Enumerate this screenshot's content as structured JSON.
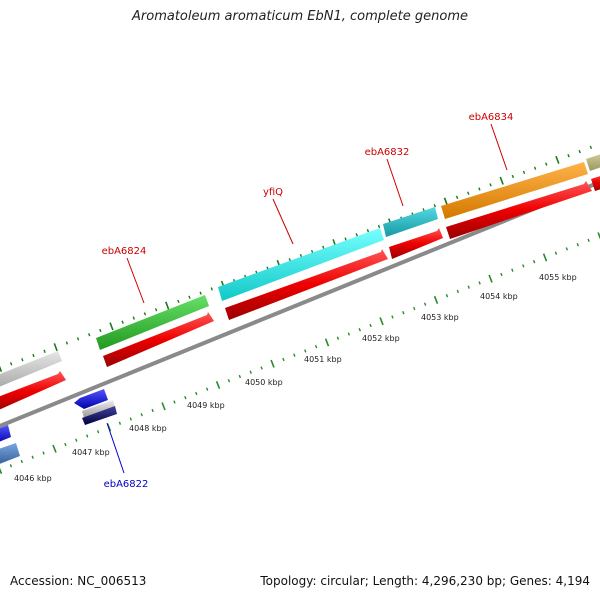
{
  "title": "Aromatoleum aromaticum EbN1, complete genome",
  "accession_text": "Accession: NC_006513",
  "summary_text": "Topology: circular; Length: 4,296,230 bp; Genes: 4,194",
  "colors": {
    "backbone": "#8a8a8a",
    "tick_major": "#1a7a1a",
    "tick_minor": "#2a8a2a",
    "label_forward": "#cc0000",
    "label_reverse": "#0000cc",
    "cds_track": "#ee0000"
  },
  "scale_labels": [
    "4046 kbp",
    "4047 kbp",
    "4048 kbp",
    "4049 kbp",
    "4050 kbp",
    "4051 kbp",
    "4052 kbp",
    "4053 kbp",
    "4054 kbp",
    "4055 kbp"
  ],
  "gene_labels": [
    {
      "name": "ebA6824",
      "strand": "forward"
    },
    {
      "name": "yfiQ",
      "strand": "forward"
    },
    {
      "name": "ebA6832",
      "strand": "forward"
    },
    {
      "name": "ebA6834",
      "strand": "forward"
    },
    {
      "name": "ebA6822",
      "strand": "reverse"
    }
  ],
  "gene_colors": {
    "gray": "#c8c8c8",
    "green": "#3cc83c",
    "cyan": "#22eeee",
    "teal": "#22c0cc",
    "orange": "#f29418",
    "olive": "#b8b478",
    "blue": "#1a1aee",
    "steel": "#4a7abf",
    "navy": "#0a0a66",
    "silver": "#bbbbbb"
  }
}
